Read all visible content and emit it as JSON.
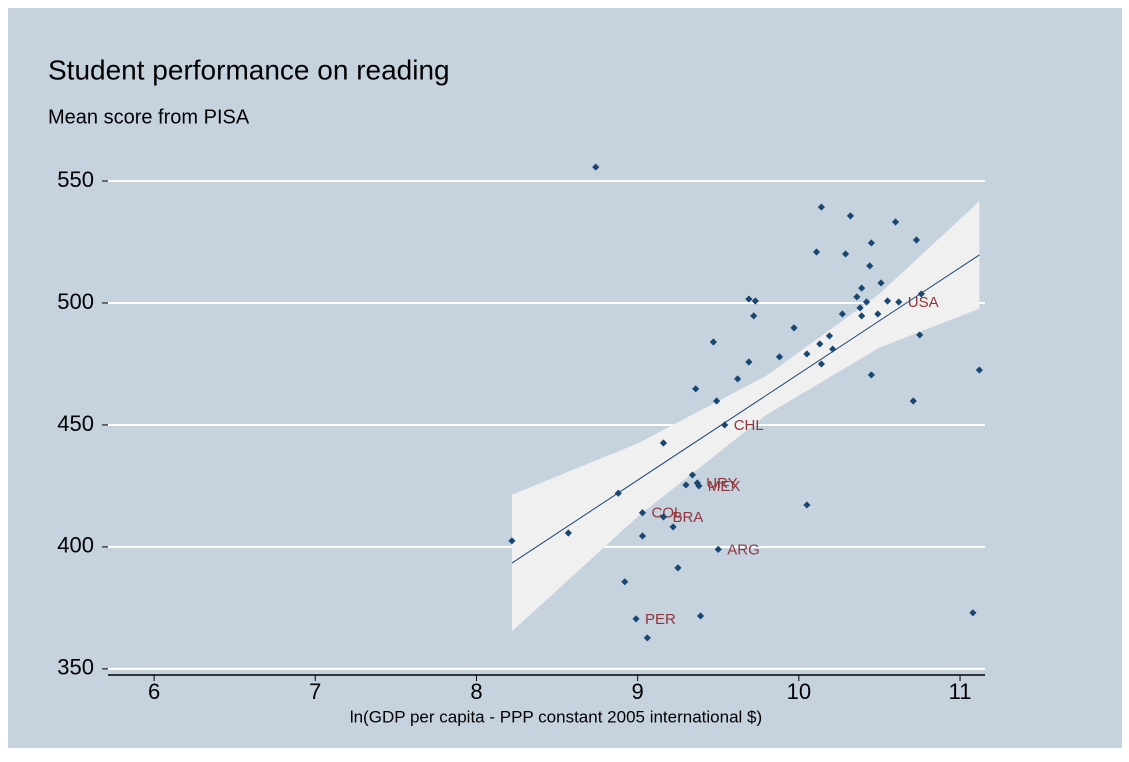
{
  "chart_data": {
    "type": "scatter",
    "title": "Student performance on reading",
    "subtitle": "Mean score from PISA",
    "x_label": "ln(GDP per capita - PPP constant 2005 international $)",
    "xlim": [
      5.714,
      11.155
    ],
    "xticks": [
      6,
      7,
      8,
      9,
      10,
      11
    ],
    "ylim": [
      347.5,
      558.6
    ],
    "yticks": [
      350,
      400,
      450,
      500,
      550
    ],
    "grid": true,
    "background": "#c6d3df",
    "series": [
      {
        "color": "#1a476f",
        "label_color": "#90353b",
        "x": [
          8.74,
          8.22,
          8.57,
          8.88,
          8.92,
          8.99,
          9.06,
          9.03,
          9.03,
          9.16,
          9.16,
          9.22,
          9.25,
          9.34,
          9.3,
          9.37,
          9.39,
          9.36,
          9.47,
          9.38,
          9.49,
          9.54,
          9.5,
          9.62,
          9.69,
          9.69,
          9.73,
          9.72,
          9.88,
          9.97,
          10.05,
          10.05,
          10.11,
          10.13,
          10.14,
          10.14,
          10.19,
          10.21,
          10.27,
          10.29,
          10.32,
          10.36,
          10.38,
          10.39,
          10.39,
          10.42,
          10.44,
          10.45,
          10.45,
          10.49,
          10.51,
          10.55,
          10.6,
          10.62,
          10.71,
          10.73,
          10.75,
          10.76,
          11.08,
          11.12
        ],
        "values": [
          555.7,
          402.5,
          405.7,
          422,
          385.7,
          370.5,
          362.7,
          414,
          404.5,
          442.6,
          412.3,
          408.2,
          391.4,
          429.5,
          425.4,
          426.2,
          371.7,
          464.8,
          484,
          425,
          459.8,
          450,
          399,
          468.9,
          475.8,
          501.6,
          500.8,
          494.7,
          477.9,
          489.8,
          479.1,
          417.2,
          520.9,
          483.2,
          539.3,
          475,
          486.5,
          481.1,
          495.5,
          520.1,
          535.7,
          502.5,
          498,
          494.7,
          506.1,
          500.4,
          515.2,
          524.6,
          470.5,
          495.5,
          508.2,
          500.8,
          533.2,
          500.4,
          459.8,
          525.8,
          486.9,
          503.7,
          373,
          472.5
        ],
        "labels": [
          null,
          null,
          null,
          null,
          null,
          "PER",
          null,
          "COL",
          null,
          null,
          "BRA",
          null,
          null,
          null,
          null,
          "URY",
          null,
          null,
          null,
          "MEX",
          null,
          "CHL",
          "ARG",
          null,
          null,
          null,
          null,
          null,
          null,
          null,
          null,
          null,
          null,
          null,
          null,
          null,
          null,
          null,
          null,
          null,
          null,
          null,
          null,
          null,
          null,
          null,
          null,
          null,
          null,
          null,
          null,
          null,
          null,
          "USA",
          null,
          null,
          null,
          null,
          null,
          null
        ]
      }
    ],
    "fit": {
      "color": "#1a476f",
      "x": [
        8.22,
        11.12
      ],
      "y": [
        393.4,
        519.7
      ]
    },
    "ci": {
      "color": "#f0f0f0",
      "x": [
        8.22,
        9,
        9.8,
        10.5,
        11.12
      ],
      "lower": [
        365.4,
        412.4,
        454.2,
        481.7,
        497.7
      ],
      "upper": [
        421.4,
        442.4,
        470.2,
        503.7,
        541.7
      ]
    }
  }
}
